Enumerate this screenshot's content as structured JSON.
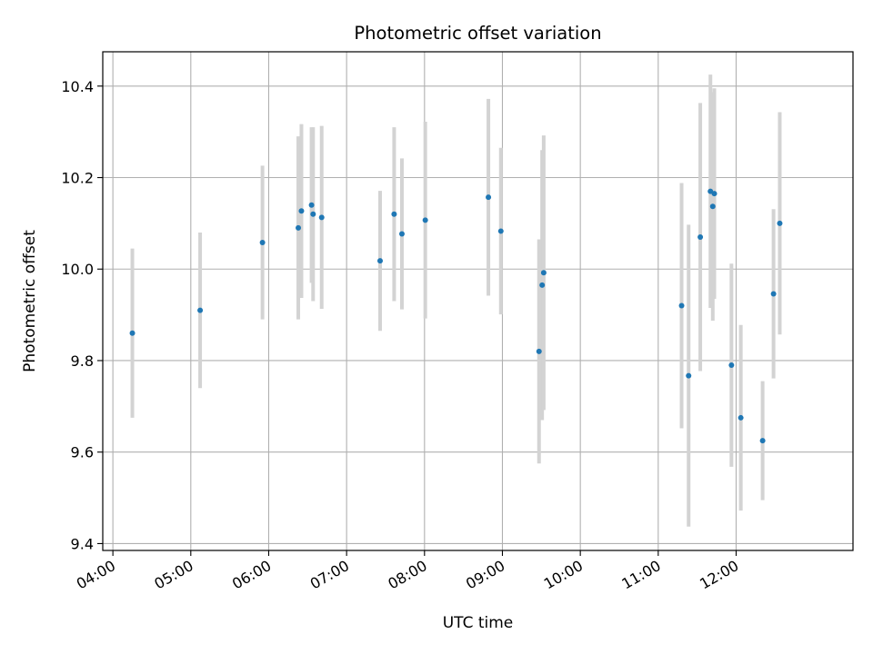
{
  "chart_data": {
    "type": "scatter",
    "title": "Photometric offset variation",
    "xlabel": "UTC time",
    "ylabel": "Photometric offset",
    "x_unit": "hours UTC",
    "xlim": [
      3.87,
      13.5
    ],
    "ylim": [
      9.385,
      10.475
    ],
    "grid": true,
    "legend": "none",
    "x_ticks": [
      {
        "value": 4,
        "label": "04:00"
      },
      {
        "value": 5,
        "label": "05:00"
      },
      {
        "value": 6,
        "label": "06:00"
      },
      {
        "value": 7,
        "label": "07:00"
      },
      {
        "value": 8,
        "label": "08:00"
      },
      {
        "value": 9,
        "label": "09:00"
      },
      {
        "value": 10,
        "label": "10:00"
      },
      {
        "value": 11,
        "label": "11:00"
      },
      {
        "value": 12,
        "label": "12:00"
      }
    ],
    "y_ticks": [
      {
        "value": 9.4,
        "label": "9.4"
      },
      {
        "value": 9.6,
        "label": "9.6"
      },
      {
        "value": 9.8,
        "label": "9.8"
      },
      {
        "value": 10.0,
        "label": "10.0"
      },
      {
        "value": 10.2,
        "label": "10.2"
      },
      {
        "value": 10.4,
        "label": "10.4"
      }
    ],
    "colors": {
      "point": "#1f77b4",
      "errorbar": "#d3d3d3",
      "grid": "#b0b0b0"
    },
    "points": [
      {
        "x": 4.25,
        "y": 9.86,
        "err": 0.185
      },
      {
        "x": 5.12,
        "y": 9.91,
        "err": 0.17
      },
      {
        "x": 5.92,
        "y": 10.058,
        "err": 0.168
      },
      {
        "x": 6.38,
        "y": 10.09,
        "err": 0.2
      },
      {
        "x": 6.42,
        "y": 10.127,
        "err": 0.19
      },
      {
        "x": 6.55,
        "y": 10.14,
        "err": 0.17
      },
      {
        "x": 6.57,
        "y": 10.12,
        "err": 0.19
      },
      {
        "x": 6.68,
        "y": 10.113,
        "err": 0.2
      },
      {
        "x": 7.43,
        "y": 10.018,
        "err": 0.153
      },
      {
        "x": 7.61,
        "y": 10.12,
        "err": 0.19
      },
      {
        "x": 7.71,
        "y": 10.077,
        "err": 0.165
      },
      {
        "x": 8.01,
        "y": 10.107,
        "err": 0.215
      },
      {
        "x": 8.82,
        "y": 10.157,
        "err": 0.215
      },
      {
        "x": 8.98,
        "y": 10.083,
        "err": 0.182
      },
      {
        "x": 9.47,
        "y": 9.82,
        "err": 0.245
      },
      {
        "x": 9.51,
        "y": 9.965,
        "err": 0.295
      },
      {
        "x": 9.53,
        "y": 9.992,
        "err": 0.3
      },
      {
        "x": 11.3,
        "y": 9.92,
        "err": 0.268
      },
      {
        "x": 11.39,
        "y": 9.767,
        "err": 0.33
      },
      {
        "x": 11.54,
        "y": 10.07,
        "err": 0.293
      },
      {
        "x": 11.67,
        "y": 10.17,
        "err": 0.255
      },
      {
        "x": 11.7,
        "y": 10.137,
        "err": 0.25
      },
      {
        "x": 11.72,
        "y": 10.165,
        "err": 0.23
      },
      {
        "x": 11.94,
        "y": 9.79,
        "err": 0.222
      },
      {
        "x": 12.06,
        "y": 9.675,
        "err": 0.203
      },
      {
        "x": 12.34,
        "y": 9.625,
        "err": 0.13
      },
      {
        "x": 12.48,
        "y": 9.946,
        "err": 0.185
      },
      {
        "x": 12.56,
        "y": 10.1,
        "err": 0.243
      }
    ]
  }
}
